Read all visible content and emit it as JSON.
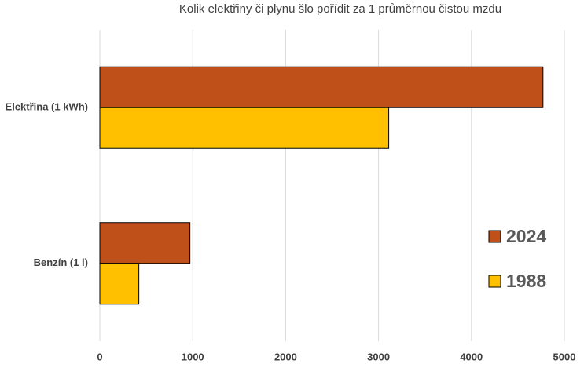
{
  "chart_data": {
    "type": "bar",
    "orientation": "horizontal",
    "title": "Kolik elektřiny či plynu šlo pořídit za 1 průměrnou čistou mzdu",
    "categories": [
      "Elektřina (1 kWh)",
      "Benzín (1 l)"
    ],
    "series": [
      {
        "name": "2024",
        "color": "#c0501a",
        "values": [
          4770,
          970
        ]
      },
      {
        "name": "1988",
        "color": "#ffc000",
        "values": [
          3110,
          420
        ]
      }
    ],
    "xlim": [
      0,
      5000
    ],
    "xticks": [
      0,
      1000,
      2000,
      3000,
      4000,
      5000
    ],
    "grid": true,
    "legend": "right"
  }
}
